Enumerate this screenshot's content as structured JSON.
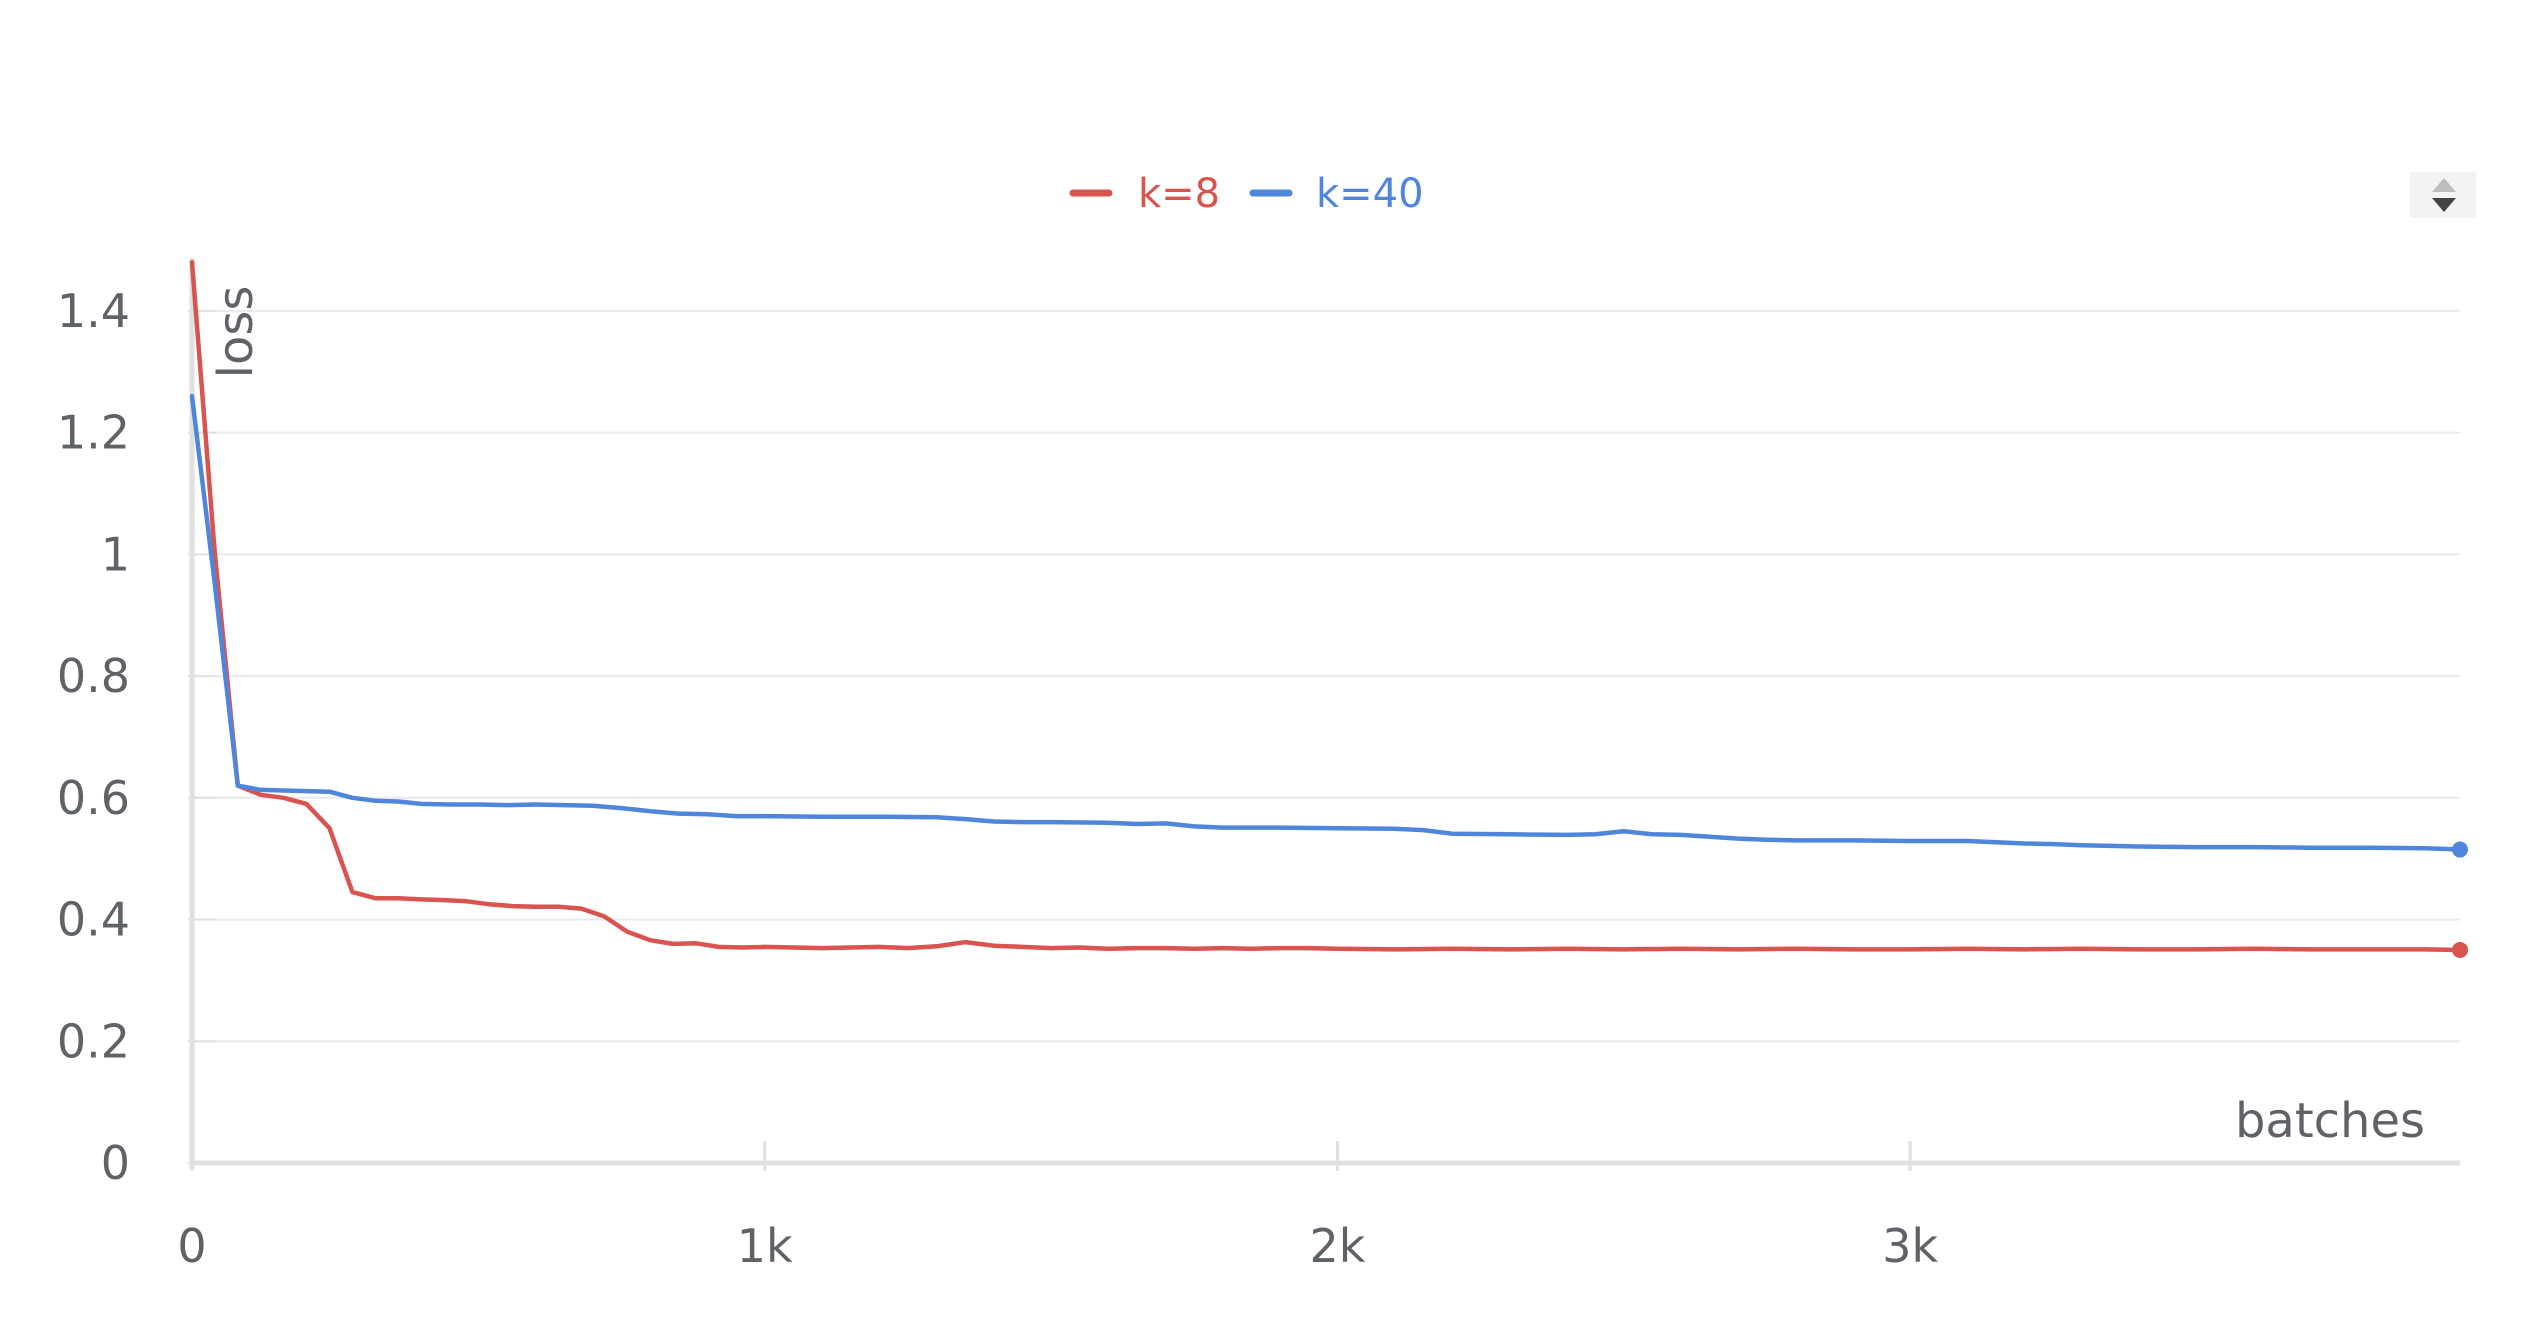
{
  "chart_data": {
    "type": "line",
    "xlabel": "batches",
    "ylabel": "loss",
    "xlim": [
      0,
      3960
    ],
    "ylim": [
      0,
      1.5
    ],
    "x_ticks": [
      {
        "value": 0,
        "label": "0"
      },
      {
        "value": 1000,
        "label": "1k"
      },
      {
        "value": 2000,
        "label": "2k"
      },
      {
        "value": 3000,
        "label": "3k"
      }
    ],
    "y_ticks": [
      {
        "value": 0,
        "label": "0"
      },
      {
        "value": 0.2,
        "label": "0.2"
      },
      {
        "value": 0.4,
        "label": "0.4"
      },
      {
        "value": 0.6,
        "label": "0.6"
      },
      {
        "value": 0.8,
        "label": "0.8"
      },
      {
        "value": 1,
        "label": "1"
      },
      {
        "value": 1.2,
        "label": "1.2"
      },
      {
        "value": 1.4,
        "label": "1.4"
      }
    ],
    "grid": true,
    "legend_position": "top-center",
    "series": [
      {
        "name": "k=8",
        "color": "#d9534f",
        "points": [
          [
            0,
            1.48
          ],
          [
            40,
            1.0
          ],
          [
            80,
            0.62
          ],
          [
            120,
            0.605
          ],
          [
            160,
            0.6
          ],
          [
            200,
            0.59
          ],
          [
            240,
            0.55
          ],
          [
            280,
            0.445
          ],
          [
            320,
            0.435
          ],
          [
            360,
            0.435
          ],
          [
            400,
            0.433
          ],
          [
            440,
            0.432
          ],
          [
            480,
            0.43
          ],
          [
            520,
            0.425
          ],
          [
            560,
            0.422
          ],
          [
            600,
            0.421
          ],
          [
            640,
            0.421
          ],
          [
            680,
            0.418
          ],
          [
            720,
            0.405
          ],
          [
            760,
            0.38
          ],
          [
            800,
            0.366
          ],
          [
            840,
            0.36
          ],
          [
            880,
            0.361
          ],
          [
            920,
            0.355
          ],
          [
            960,
            0.354
          ],
          [
            1000,
            0.355
          ],
          [
            1050,
            0.354
          ],
          [
            1100,
            0.353
          ],
          [
            1150,
            0.354
          ],
          [
            1200,
            0.355
          ],
          [
            1250,
            0.353
          ],
          [
            1300,
            0.356
          ],
          [
            1350,
            0.363
          ],
          [
            1400,
            0.357
          ],
          [
            1450,
            0.355
          ],
          [
            1500,
            0.353
          ],
          [
            1550,
            0.354
          ],
          [
            1600,
            0.352
          ],
          [
            1650,
            0.353
          ],
          [
            1700,
            0.353
          ],
          [
            1750,
            0.352
          ],
          [
            1800,
            0.353
          ],
          [
            1850,
            0.352
          ],
          [
            1900,
            0.353
          ],
          [
            1950,
            0.353
          ],
          [
            2000,
            0.352
          ],
          [
            2100,
            0.351
          ],
          [
            2200,
            0.352
          ],
          [
            2300,
            0.351
          ],
          [
            2400,
            0.352
          ],
          [
            2500,
            0.351
          ],
          [
            2600,
            0.352
          ],
          [
            2700,
            0.351
          ],
          [
            2800,
            0.352
          ],
          [
            2900,
            0.351
          ],
          [
            3000,
            0.351
          ],
          [
            3100,
            0.352
          ],
          [
            3200,
            0.351
          ],
          [
            3300,
            0.352
          ],
          [
            3400,
            0.351
          ],
          [
            3500,
            0.351
          ],
          [
            3600,
            0.352
          ],
          [
            3700,
            0.351
          ],
          [
            3800,
            0.351
          ],
          [
            3900,
            0.351
          ],
          [
            3960,
            0.35
          ]
        ]
      },
      {
        "name": "k=40",
        "color": "#4f86db",
        "points": [
          [
            0,
            1.26
          ],
          [
            40,
            0.95
          ],
          [
            80,
            0.62
          ],
          [
            120,
            0.613
          ],
          [
            160,
            0.612
          ],
          [
            200,
            0.611
          ],
          [
            240,
            0.61
          ],
          [
            280,
            0.6
          ],
          [
            320,
            0.595
          ],
          [
            360,
            0.594
          ],
          [
            400,
            0.59
          ],
          [
            450,
            0.589
          ],
          [
            500,
            0.589
          ],
          [
            550,
            0.588
          ],
          [
            600,
            0.589
          ],
          [
            650,
            0.588
          ],
          [
            700,
            0.587
          ],
          [
            750,
            0.583
          ],
          [
            800,
            0.578
          ],
          [
            850,
            0.574
          ],
          [
            900,
            0.573
          ],
          [
            950,
            0.57
          ],
          [
            1000,
            0.57
          ],
          [
            1100,
            0.569
          ],
          [
            1200,
            0.569
          ],
          [
            1300,
            0.568
          ],
          [
            1350,
            0.565
          ],
          [
            1400,
            0.561
          ],
          [
            1450,
            0.56
          ],
          [
            1500,
            0.56
          ],
          [
            1600,
            0.559
          ],
          [
            1650,
            0.557
          ],
          [
            1700,
            0.558
          ],
          [
            1750,
            0.553
          ],
          [
            1800,
            0.551
          ],
          [
            1900,
            0.551
          ],
          [
            2000,
            0.55
          ],
          [
            2100,
            0.549
          ],
          [
            2150,
            0.547
          ],
          [
            2200,
            0.541
          ],
          [
            2300,
            0.54
          ],
          [
            2400,
            0.539
          ],
          [
            2450,
            0.54
          ],
          [
            2500,
            0.545
          ],
          [
            2550,
            0.54
          ],
          [
            2600,
            0.539
          ],
          [
            2700,
            0.533
          ],
          [
            2750,
            0.531
          ],
          [
            2800,
            0.53
          ],
          [
            2900,
            0.53
          ],
          [
            3000,
            0.529
          ],
          [
            3100,
            0.529
          ],
          [
            3150,
            0.527
          ],
          [
            3200,
            0.525
          ],
          [
            3250,
            0.524
          ],
          [
            3300,
            0.522
          ],
          [
            3350,
            0.521
          ],
          [
            3400,
            0.52
          ],
          [
            3500,
            0.519
          ],
          [
            3600,
            0.519
          ],
          [
            3700,
            0.518
          ],
          [
            3800,
            0.518
          ],
          [
            3900,
            0.517
          ],
          [
            3960,
            0.515
          ]
        ]
      }
    ]
  }
}
